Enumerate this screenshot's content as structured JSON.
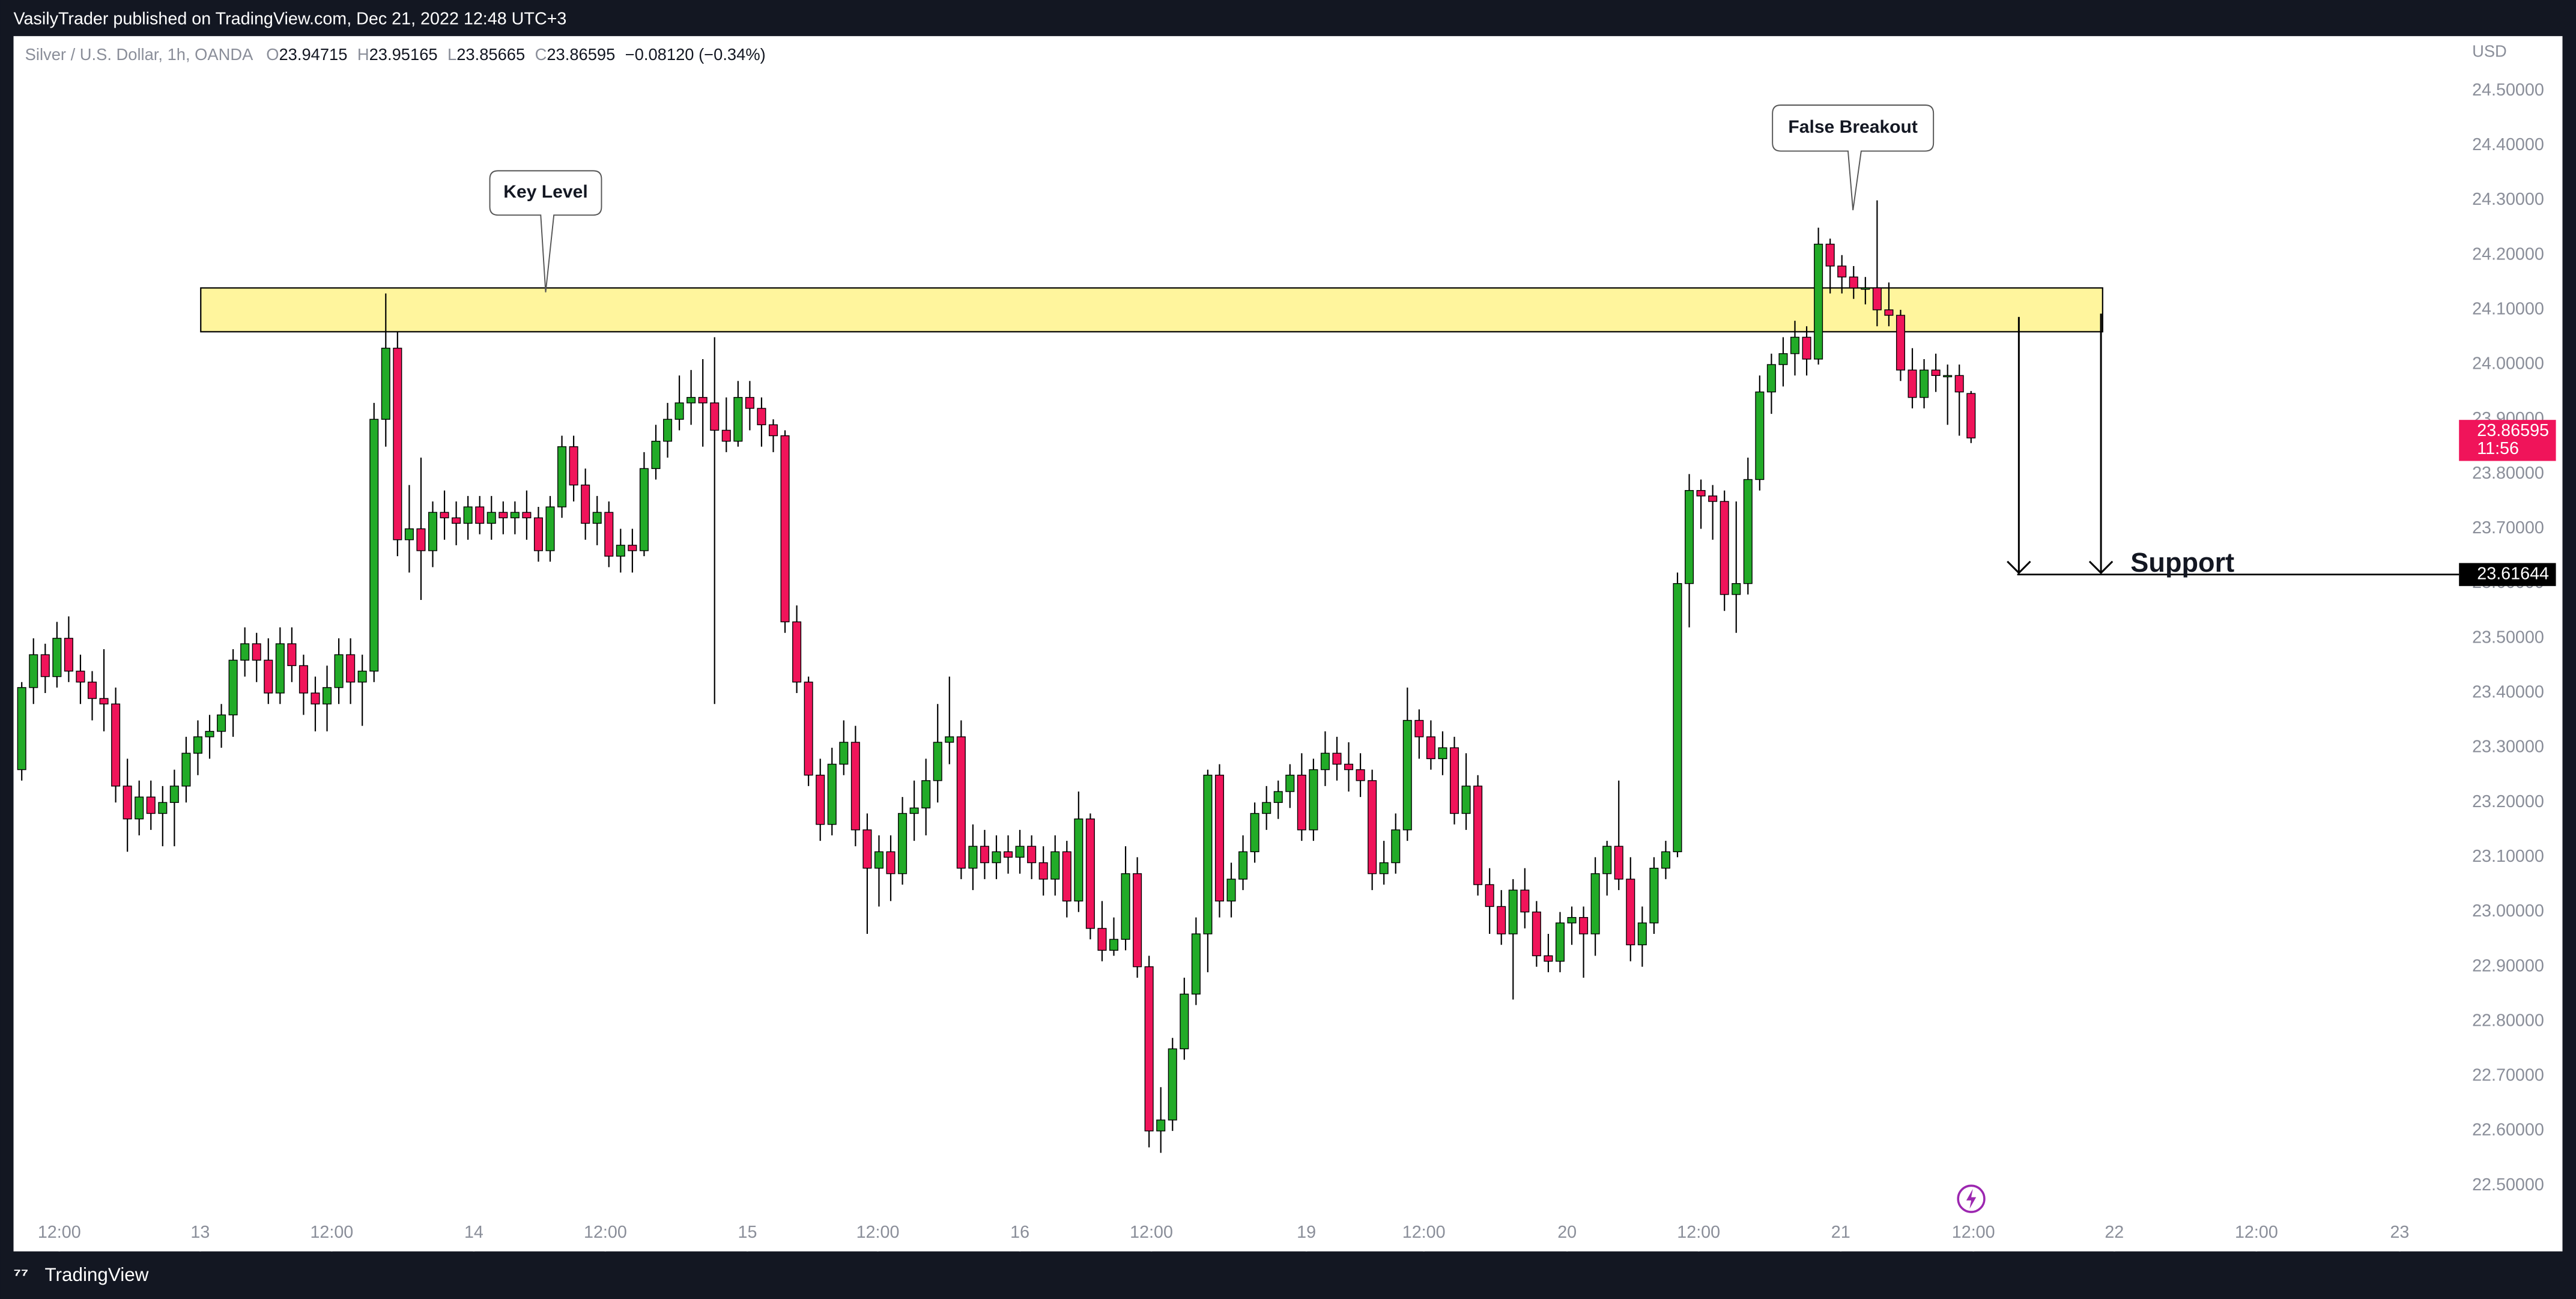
{
  "publisher_line": "VasilyTrader published on TradingView.com, Dec 21, 2022 12:48 UTC+3",
  "footer_brand": "TradingView",
  "chart_data": {
    "type": "candlestick",
    "title": "Silver / U.S. Dollar, 1h, OANDA",
    "header_values": [
      {
        "label": "O",
        "value": "23.94715"
      },
      {
        "label": "H",
        "value": "23.95165"
      },
      {
        "label": "L",
        "value": "23.85665"
      },
      {
        "label": "C",
        "value": "23.86595"
      }
    ],
    "header_change": "−0.08120 (−0.34%)",
    "currency": "USD",
    "up_color": "#22ab28",
    "down_color": "#f0145a",
    "ylim": [
      22.44,
      24.6
    ],
    "yticks": [
      {
        "value": 22.5,
        "label": "22.50000"
      },
      {
        "value": 22.6,
        "label": "22.60000"
      },
      {
        "value": 22.7,
        "label": "22.70000"
      },
      {
        "value": 22.8,
        "label": "22.80000"
      },
      {
        "value": 22.9,
        "label": "22.90000"
      },
      {
        "value": 23.0,
        "label": "23.00000"
      },
      {
        "value": 23.1,
        "label": "23.10000"
      },
      {
        "value": 23.2,
        "label": "23.20000"
      },
      {
        "value": 23.3,
        "label": "23.30000"
      },
      {
        "value": 23.4,
        "label": "23.40000"
      },
      {
        "value": 23.5,
        "label": "23.50000"
      },
      {
        "value": 23.6,
        "label": "23.60000"
      },
      {
        "value": 23.7,
        "label": "23.70000"
      },
      {
        "value": 23.8,
        "label": "23.80000"
      },
      {
        "value": 23.9,
        "label": "23.90000"
      },
      {
        "value": 24.0,
        "label": "24.00000"
      },
      {
        "value": 24.1,
        "label": "24.10000"
      },
      {
        "value": 24.2,
        "label": "24.20000"
      },
      {
        "value": 24.3,
        "label": "24.30000"
      },
      {
        "value": 24.4,
        "label": "24.40000"
      },
      {
        "value": 24.5,
        "label": "24.50000"
      }
    ],
    "xticks": [
      {
        "value": 3.2,
        "label": "12:00"
      },
      {
        "value": 15.2,
        "label": "13"
      },
      {
        "value": 26.4,
        "label": "12:00"
      },
      {
        "value": 38.5,
        "label": "14"
      },
      {
        "value": 49.7,
        "label": "12:00"
      },
      {
        "value": 61.8,
        "label": "15"
      },
      {
        "value": 72.9,
        "label": "12:00"
      },
      {
        "value": 85.0,
        "label": "16"
      },
      {
        "value": 96.2,
        "label": "12:00"
      },
      {
        "value": 109.4,
        "label": "19"
      },
      {
        "value": 119.4,
        "label": "12:00"
      },
      {
        "value": 131.6,
        "label": "20"
      },
      {
        "value": 142.8,
        "label": "12:00"
      },
      {
        "value": 154.9,
        "label": "21"
      },
      {
        "value": 166.2,
        "label": "12:00"
      },
      {
        "value": 178.2,
        "label": "22"
      },
      {
        "value": 190.3,
        "label": "12:00"
      },
      {
        "value": 202.5,
        "label": "23"
      }
    ],
    "candles": [
      [
        23.26,
        23.42,
        23.24,
        23.41
      ],
      [
        23.41,
        23.5,
        23.38,
        23.47
      ],
      [
        23.47,
        23.49,
        23.4,
        23.43
      ],
      [
        23.43,
        23.53,
        23.41,
        23.5
      ],
      [
        23.5,
        23.54,
        23.42,
        23.44
      ],
      [
        23.44,
        23.47,
        23.38,
        23.42
      ],
      [
        23.42,
        23.44,
        23.35,
        23.39
      ],
      [
        23.39,
        23.48,
        23.33,
        23.38
      ],
      [
        23.38,
        23.41,
        23.2,
        23.23
      ],
      [
        23.23,
        23.28,
        23.11,
        23.17
      ],
      [
        23.17,
        23.24,
        23.14,
        23.21
      ],
      [
        23.21,
        23.24,
        23.15,
        23.18
      ],
      [
        23.18,
        23.23,
        23.12,
        23.2
      ],
      [
        23.2,
        23.26,
        23.12,
        23.23
      ],
      [
        23.23,
        23.32,
        23.2,
        23.29
      ],
      [
        23.29,
        23.35,
        23.25,
        23.32
      ],
      [
        23.32,
        23.36,
        23.28,
        23.33
      ],
      [
        23.33,
        23.38,
        23.3,
        23.36
      ],
      [
        23.36,
        23.48,
        23.32,
        23.46
      ],
      [
        23.46,
        23.52,
        23.43,
        23.49
      ],
      [
        23.49,
        23.51,
        23.42,
        23.46
      ],
      [
        23.46,
        23.5,
        23.38,
        23.4
      ],
      [
        23.4,
        23.52,
        23.38,
        23.49
      ],
      [
        23.49,
        23.52,
        23.42,
        23.45
      ],
      [
        23.45,
        23.47,
        23.36,
        23.4
      ],
      [
        23.4,
        23.43,
        23.33,
        23.38
      ],
      [
        23.38,
        23.45,
        23.33,
        23.41
      ],
      [
        23.41,
        23.5,
        23.38,
        23.47
      ],
      [
        23.47,
        23.5,
        23.38,
        23.42
      ],
      [
        23.42,
        23.47,
        23.34,
        23.44
      ],
      [
        23.44,
        23.93,
        23.42,
        23.9
      ],
      [
        23.9,
        24.13,
        23.85,
        24.03
      ],
      [
        24.03,
        24.06,
        23.65,
        23.68
      ],
      [
        23.68,
        23.78,
        23.62,
        23.7
      ],
      [
        23.7,
        23.83,
        23.57,
        23.66
      ],
      [
        23.66,
        23.75,
        23.63,
        23.73
      ],
      [
        23.73,
        23.77,
        23.68,
        23.72
      ],
      [
        23.72,
        23.75,
        23.67,
        23.71
      ],
      [
        23.71,
        23.76,
        23.68,
        23.74
      ],
      [
        23.74,
        23.76,
        23.69,
        23.71
      ],
      [
        23.71,
        23.76,
        23.68,
        23.73
      ],
      [
        23.73,
        23.75,
        23.69,
        23.72
      ],
      [
        23.72,
        23.75,
        23.69,
        23.73
      ],
      [
        23.73,
        23.77,
        23.68,
        23.72
      ],
      [
        23.72,
        23.74,
        23.64,
        23.66
      ],
      [
        23.66,
        23.76,
        23.64,
        23.74
      ],
      [
        23.74,
        23.87,
        23.72,
        23.85
      ],
      [
        23.85,
        23.87,
        23.75,
        23.78
      ],
      [
        23.78,
        23.81,
        23.68,
        23.71
      ],
      [
        23.71,
        23.76,
        23.67,
        23.73
      ],
      [
        23.73,
        23.75,
        23.63,
        23.65
      ],
      [
        23.65,
        23.7,
        23.62,
        23.67
      ],
      [
        23.67,
        23.7,
        23.62,
        23.66
      ],
      [
        23.66,
        23.84,
        23.65,
        23.81
      ],
      [
        23.81,
        23.89,
        23.79,
        23.86
      ],
      [
        23.86,
        23.93,
        23.83,
        23.9
      ],
      [
        23.9,
        23.98,
        23.88,
        23.93
      ],
      [
        23.93,
        23.99,
        23.89,
        23.94
      ],
      [
        23.94,
        24.01,
        23.85,
        23.93
      ],
      [
        23.93,
        24.05,
        23.38,
        23.88
      ],
      [
        23.88,
        23.94,
        23.84,
        23.86
      ],
      [
        23.86,
        23.97,
        23.85,
        23.94
      ],
      [
        23.94,
        23.97,
        23.88,
        23.92
      ],
      [
        23.92,
        23.94,
        23.85,
        23.89
      ],
      [
        23.89,
        23.9,
        23.84,
        23.87
      ],
      [
        23.87,
        23.88,
        23.51,
        23.53
      ],
      [
        23.53,
        23.56,
        23.4,
        23.42
      ],
      [
        23.42,
        23.43,
        23.23,
        23.25
      ],
      [
        23.25,
        23.28,
        23.13,
        23.16
      ],
      [
        23.16,
        23.3,
        23.14,
        23.27
      ],
      [
        23.27,
        23.35,
        23.25,
        23.31
      ],
      [
        23.31,
        23.34,
        23.12,
        23.15
      ],
      [
        23.15,
        23.18,
        22.96,
        23.08
      ],
      [
        23.08,
        23.14,
        23.01,
        23.11
      ],
      [
        23.11,
        23.14,
        23.02,
        23.07
      ],
      [
        23.07,
        23.21,
        23.05,
        23.18
      ],
      [
        23.18,
        23.24,
        23.13,
        23.19
      ],
      [
        23.19,
        23.28,
        23.14,
        23.24
      ],
      [
        23.24,
        23.38,
        23.2,
        23.31
      ],
      [
        23.31,
        23.43,
        23.27,
        23.32
      ],
      [
        23.32,
        23.35,
        23.06,
        23.08
      ],
      [
        23.08,
        23.16,
        23.04,
        23.12
      ],
      [
        23.12,
        23.15,
        23.06,
        23.09
      ],
      [
        23.09,
        23.14,
        23.06,
        23.11
      ],
      [
        23.11,
        23.14,
        23.07,
        23.1
      ],
      [
        23.1,
        23.15,
        23.07,
        23.12
      ],
      [
        23.12,
        23.14,
        23.06,
        23.09
      ],
      [
        23.09,
        23.12,
        23.03,
        23.06
      ],
      [
        23.06,
        23.14,
        23.03,
        23.11
      ],
      [
        23.11,
        23.13,
        22.99,
        23.02
      ],
      [
        23.02,
        23.22,
        23.0,
        23.17
      ],
      [
        23.17,
        23.18,
        22.95,
        22.97
      ],
      [
        22.97,
        23.02,
        22.91,
        22.93
      ],
      [
        22.93,
        22.99,
        22.92,
        22.95
      ],
      [
        22.95,
        23.12,
        22.93,
        23.07
      ],
      [
        23.07,
        23.1,
        22.88,
        22.9
      ],
      [
        22.9,
        22.92,
        22.57,
        22.6
      ],
      [
        22.6,
        22.68,
        22.56,
        22.62
      ],
      [
        22.62,
        22.77,
        22.6,
        22.75
      ],
      [
        22.75,
        22.88,
        22.73,
        22.85
      ],
      [
        22.85,
        22.99,
        22.83,
        22.96
      ],
      [
        22.96,
        23.26,
        22.89,
        23.25
      ],
      [
        23.25,
        23.27,
        22.99,
        23.02
      ],
      [
        23.02,
        23.09,
        22.99,
        23.06
      ],
      [
        23.06,
        23.14,
        23.04,
        23.11
      ],
      [
        23.11,
        23.2,
        23.09,
        23.18
      ],
      [
        23.18,
        23.23,
        23.15,
        23.2
      ],
      [
        23.2,
        23.24,
        23.17,
        23.22
      ],
      [
        23.22,
        23.27,
        23.19,
        23.25
      ],
      [
        23.25,
        23.29,
        23.13,
        23.15
      ],
      [
        23.15,
        23.28,
        23.13,
        23.26
      ],
      [
        23.26,
        23.33,
        23.23,
        23.29
      ],
      [
        23.29,
        23.32,
        23.24,
        23.27
      ],
      [
        23.27,
        23.31,
        23.22,
        23.26
      ],
      [
        23.26,
        23.29,
        23.21,
        23.24
      ],
      [
        23.24,
        23.26,
        23.04,
        23.07
      ],
      [
        23.07,
        23.13,
        23.05,
        23.09
      ],
      [
        23.09,
        23.18,
        23.07,
        23.15
      ],
      [
        23.15,
        23.41,
        23.13,
        23.35
      ],
      [
        23.35,
        23.37,
        23.28,
        23.32
      ],
      [
        23.32,
        23.35,
        23.26,
        23.28
      ],
      [
        23.28,
        23.33,
        23.25,
        23.3
      ],
      [
        23.3,
        23.32,
        23.16,
        23.18
      ],
      [
        23.18,
        23.29,
        23.15,
        23.23
      ],
      [
        23.23,
        23.25,
        23.03,
        23.05
      ],
      [
        23.05,
        23.08,
        22.96,
        23.01
      ],
      [
        23.01,
        23.04,
        22.94,
        22.96
      ],
      [
        22.96,
        23.06,
        22.84,
        23.04
      ],
      [
        23.04,
        23.08,
        22.97,
        23.0
      ],
      [
        23.0,
        23.02,
        22.9,
        22.92
      ],
      [
        22.92,
        22.96,
        22.89,
        22.91
      ],
      [
        22.91,
        23.0,
        22.89,
        22.98
      ],
      [
        22.98,
        23.01,
        22.94,
        22.99
      ],
      [
        22.99,
        23.01,
        22.88,
        22.96
      ],
      [
        22.96,
        23.1,
        22.92,
        23.07
      ],
      [
        23.07,
        23.13,
        23.03,
        23.12
      ],
      [
        23.12,
        23.24,
        23.04,
        23.06
      ],
      [
        23.06,
        23.1,
        22.91,
        22.94
      ],
      [
        22.94,
        23.01,
        22.9,
        22.98
      ],
      [
        22.98,
        23.1,
        22.96,
        23.08
      ],
      [
        23.08,
        23.13,
        23.06,
        23.11
      ],
      [
        23.11,
        23.62,
        23.1,
        23.6
      ],
      [
        23.6,
        23.8,
        23.52,
        23.77
      ],
      [
        23.77,
        23.79,
        23.7,
        23.76
      ],
      [
        23.76,
        23.78,
        23.68,
        23.75
      ],
      [
        23.75,
        23.77,
        23.55,
        23.58
      ],
      [
        23.58,
        23.75,
        23.51,
        23.6
      ],
      [
        23.6,
        23.83,
        23.58,
        23.79
      ],
      [
        23.79,
        23.98,
        23.77,
        23.95
      ],
      [
        23.95,
        24.02,
        23.91,
        24.0
      ],
      [
        24.0,
        24.05,
        23.96,
        24.02
      ],
      [
        24.02,
        24.08,
        23.98,
        24.05
      ],
      [
        24.05,
        24.07,
        23.98,
        24.01
      ],
      [
        24.01,
        24.25,
        24.0,
        24.22
      ],
      [
        24.22,
        24.23,
        24.13,
        24.18
      ],
      [
        24.18,
        24.2,
        24.13,
        24.16
      ],
      [
        24.16,
        24.18,
        24.12,
        24.14
      ],
      [
        24.14,
        24.16,
        24.11,
        24.14
      ],
      [
        24.14,
        24.3,
        24.07,
        24.1
      ],
      [
        24.1,
        24.15,
        24.07,
        24.09
      ],
      [
        24.09,
        24.1,
        23.97,
        23.99
      ],
      [
        23.99,
        24.03,
        23.92,
        23.94
      ],
      [
        23.94,
        24.01,
        23.92,
        23.99
      ],
      [
        23.99,
        24.02,
        23.95,
        23.98
      ],
      [
        23.98,
        24.0,
        23.89,
        23.98
      ],
      [
        23.98,
        24.0,
        23.87,
        23.95
      ],
      [
        23.94715,
        23.95165,
        23.85665,
        23.86595
      ]
    ],
    "last_price": 23.86595,
    "countdown": "11:56",
    "zone": [
      24.06,
      24.14
    ],
    "support_level": 23.61644,
    "annotations": [
      "Key Level",
      "False Breakout",
      "Support"
    ]
  }
}
